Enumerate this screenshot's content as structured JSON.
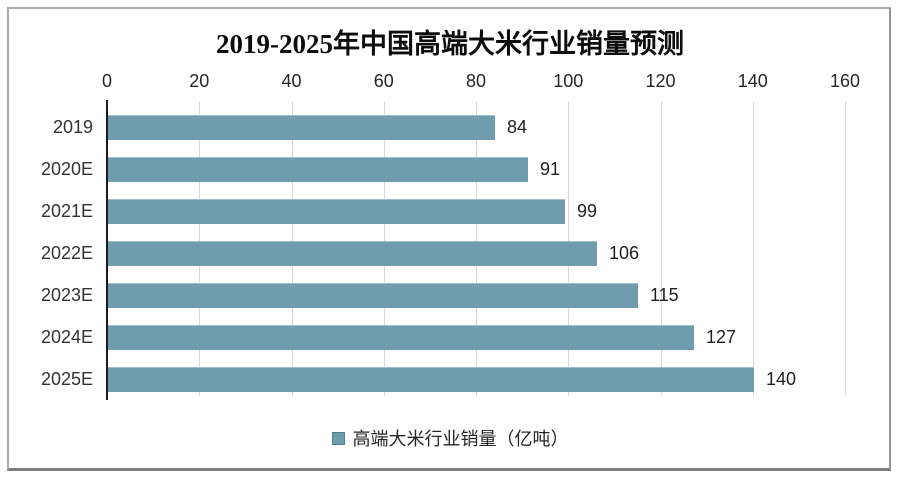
{
  "title": "2019-2025年中国高端大米行业销量预测",
  "legend": {
    "label": "高端大米行业销量（亿吨）",
    "marker_color": "#6f9dae"
  },
  "chart_data": {
    "type": "bar",
    "orientation": "horizontal",
    "title": "2019-2025年中国高端大米行业销量预测",
    "categories": [
      "2019",
      "2020E",
      "2021E",
      "2022E",
      "2023E",
      "2024E",
      "2025E"
    ],
    "values": [
      84,
      91,
      99,
      106,
      115,
      127,
      140
    ],
    "series_name": "高端大米行业销量（亿吨）",
    "x_ticks": [
      0,
      20,
      40,
      60,
      80,
      100,
      120,
      140,
      160
    ],
    "xlim": [
      0,
      160
    ],
    "axis_position": "top",
    "grid": true,
    "legend_position": "bottom",
    "value_labels": true,
    "bar_color": "#6f9dae",
    "grid_color": "#d9d9d9",
    "axis_color": "#1a1a1a",
    "text_color": "#262626"
  }
}
